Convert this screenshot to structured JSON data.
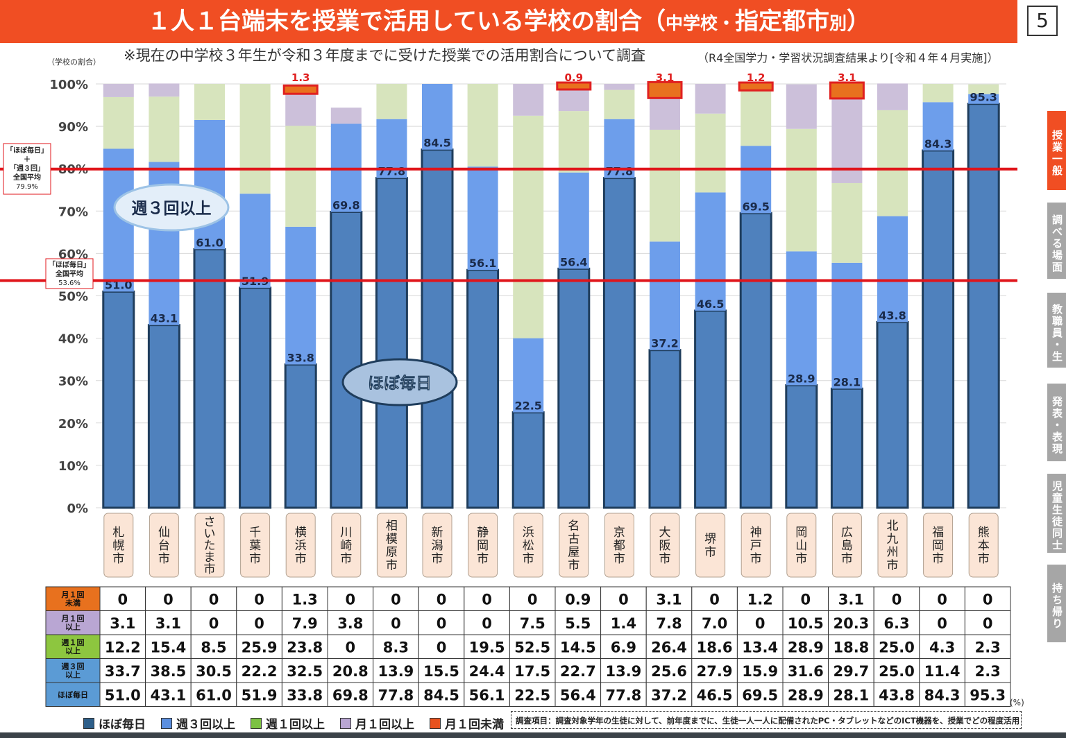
{
  "title_main": "１人１台端末を授業で活用している学校の割合（",
  "title_sub_a": "中",
  "title_sub_b": "学校・",
  "title_sub_c": "指定都市",
  "title_sub_d": "別",
  "title_end": "）",
  "page_number": "5",
  "notice": "※現在の中学校３年生が令和３年度までに受けた授業での活用割合について調査",
  "source": "（R4全国学力・学習状況調査結果より[令和４年４月実施]）",
  "ylabel": "（学校の割合）",
  "side_tabs": [
    "授業一般",
    "調べる場面",
    "教職員・生徒",
    "発表・表現",
    "児童生徒同士",
    "持ち帰り"
  ],
  "side_tab_colors": [
    "#f04e23",
    "#a6a6a6",
    "#a6a6a6",
    "#a6a6a6",
    "#a6a6a6",
    "#a6a6a6"
  ],
  "bubbles": {
    "weekly3": "週３回以上",
    "daily": "ほぼ毎日"
  },
  "ref_lines": {
    "upper": {
      "value": 79.9,
      "label": [
        "「ほぼ毎日」",
        "＋",
        "「週３回」",
        "全国平均",
        "79.9%"
      ]
    },
    "lower": {
      "value": 53.6,
      "label": [
        "「ほぼ毎日」",
        "全国平均",
        "53.6%"
      ]
    }
  },
  "legend_items": [
    {
      "label": "ほぼ毎日",
      "color": "#2e5f8a"
    },
    {
      "label": "週３回以上",
      "color": "#5b8fe0"
    },
    {
      "label": "週１回以上",
      "color": "#7cc242"
    },
    {
      "label": "月１回以上",
      "color": "#b9a6d3"
    },
    {
      "label": "月１回未満",
      "color": "#e8521e"
    }
  ],
  "survey_note": "調査項目：調査対象学年の生徒に対して、前年度までに、生徒一人一人に配備されたPC・タブレットなどのICT機器を、授業でどの程度活用しましたか",
  "pct_unit": "(%)",
  "chart_data": {
    "type": "bar",
    "stacked": true,
    "ylim": [
      0,
      100
    ],
    "ytick_labels": [
      "0%",
      "10%",
      "20%",
      "30%",
      "40%",
      "50%",
      "60%",
      "70%",
      "80%",
      "90%",
      "100%"
    ],
    "categories": [
      "札幌市",
      "仙台市",
      "さいたま市",
      "千葉市",
      "横浜市",
      "川崎市",
      "相模原市",
      "新潟市",
      "静岡市",
      "浜松市",
      "名古屋市",
      "京都市",
      "大阪市",
      "堺市",
      "神戸市",
      "岡山市",
      "広島市",
      "北九州市",
      "福岡市",
      "熊本市"
    ],
    "series": [
      {
        "name": "ほぼ毎日",
        "color": "#4f81bd",
        "values": [
          51.0,
          43.1,
          61.0,
          51.9,
          33.8,
          69.8,
          77.8,
          84.5,
          56.1,
          22.5,
          56.4,
          77.8,
          37.2,
          46.5,
          69.5,
          28.9,
          28.1,
          43.8,
          84.3,
          95.3
        ]
      },
      {
        "name": "週３回以上",
        "color": "#6d9eeb",
        "values": [
          33.7,
          38.5,
          30.5,
          22.2,
          32.5,
          20.8,
          13.9,
          15.5,
          24.4,
          17.5,
          22.7,
          13.9,
          25.6,
          27.9,
          15.9,
          31.6,
          29.7,
          25.0,
          11.4,
          2.3
        ]
      },
      {
        "name": "週１回以上",
        "color": "#d7e4bd",
        "values": [
          12.2,
          15.4,
          8.5,
          25.9,
          23.8,
          0,
          8.3,
          0,
          19.5,
          52.5,
          14.5,
          6.9,
          26.4,
          18.6,
          13.4,
          28.9,
          18.8,
          25.0,
          4.3,
          2.3
        ]
      },
      {
        "name": "月１回以上",
        "color": "#ccc0da",
        "values": [
          3.1,
          3.1,
          0,
          0,
          7.9,
          3.8,
          0,
          0,
          0,
          7.5,
          5.5,
          1.4,
          7.8,
          7.0,
          0,
          10.5,
          20.3,
          6.3,
          0,
          0
        ]
      },
      {
        "name": "月１回未満",
        "color": "#e8711e",
        "values": [
          0,
          0,
          0,
          0,
          1.3,
          0,
          0,
          0,
          0,
          0,
          0.9,
          0,
          3.1,
          0,
          1.2,
          0,
          3.1,
          0,
          0,
          0
        ]
      }
    ],
    "top_labels": [
      "",
      "",
      "",
      "",
      "1.3",
      "",
      "",
      "",
      "",
      "",
      "0.9",
      "",
      "3.1",
      "",
      "1.2",
      "",
      "3.1",
      "",
      "",
      ""
    ],
    "bar_labels": [
      "51.0",
      "43.1",
      "61.0",
      "51.9",
      "33.8",
      "69.8",
      "77.8",
      "84.5",
      "56.1",
      "22.5",
      "56.4",
      "77.8",
      "37.2",
      "46.5",
      "69.5",
      "28.9",
      "28.1",
      "43.8",
      "84.3",
      "95.3"
    ]
  },
  "table": {
    "row_headers": [
      {
        "label": [
          "月１回",
          "未満"
        ],
        "color": "#e8711e"
      },
      {
        "label": [
          "月１回",
          "以上"
        ],
        "color": "#b9a6d3"
      },
      {
        "label": [
          "週１回",
          "以上"
        ],
        "color": "#8dc63f"
      },
      {
        "label": [
          "週３回",
          "以上"
        ],
        "color": "#5b9bd5"
      },
      {
        "label": [
          "ほぼ毎日"
        ],
        "color": "#5b9bd5"
      }
    ],
    "rows": [
      [
        "0",
        "0",
        "0",
        "0",
        "1.3",
        "0",
        "0",
        "0",
        "0",
        "0",
        "0.9",
        "0",
        "3.1",
        "0",
        "1.2",
        "0",
        "3.1",
        "0",
        "0",
        "0"
      ],
      [
        "3.1",
        "3.1",
        "0",
        "0",
        "7.9",
        "3.8",
        "0",
        "0",
        "0",
        "7.5",
        "5.5",
        "1.4",
        "7.8",
        "7.0",
        "0",
        "10.5",
        "20.3",
        "6.3",
        "0",
        "0"
      ],
      [
        "12.2",
        "15.4",
        "8.5",
        "25.9",
        "23.8",
        "0",
        "8.3",
        "0",
        "19.5",
        "52.5",
        "14.5",
        "6.9",
        "26.4",
        "18.6",
        "13.4",
        "28.9",
        "18.8",
        "25.0",
        "4.3",
        "2.3"
      ],
      [
        "33.7",
        "38.5",
        "30.5",
        "22.2",
        "32.5",
        "20.8",
        "13.9",
        "15.5",
        "24.4",
        "17.5",
        "22.7",
        "13.9",
        "25.6",
        "27.9",
        "15.9",
        "31.6",
        "29.7",
        "25.0",
        "11.4",
        "2.3"
      ],
      [
        "51.0",
        "43.1",
        "61.0",
        "51.9",
        "33.8",
        "69.8",
        "77.8",
        "84.5",
        "56.1",
        "22.5",
        "56.4",
        "77.8",
        "37.2",
        "46.5",
        "69.5",
        "28.9",
        "28.1",
        "43.8",
        "84.3",
        "95.3"
      ]
    ]
  }
}
